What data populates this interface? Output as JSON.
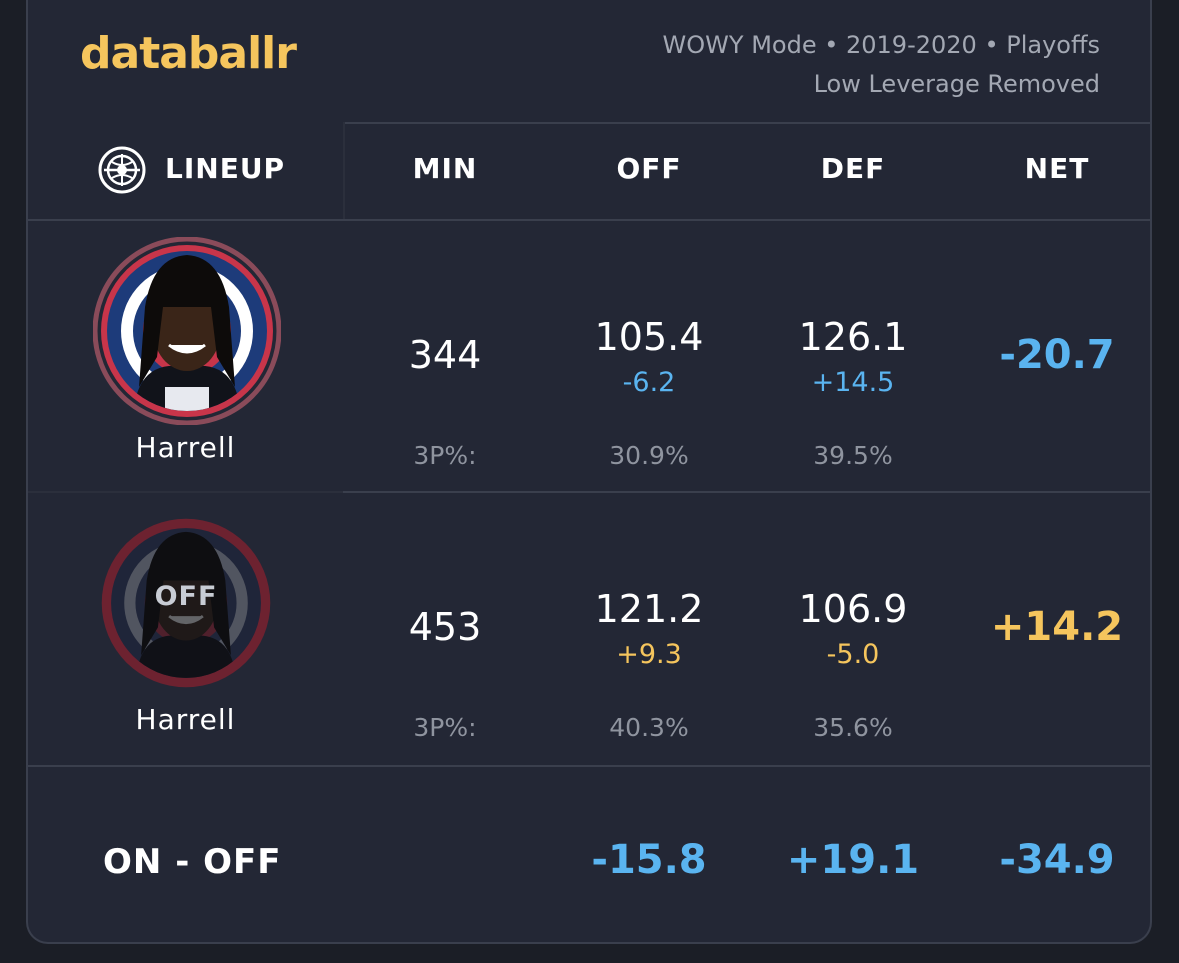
{
  "header": {
    "logo": "databallr",
    "meta_line1": "WOWY Mode • 2019-2020 • Playoffs",
    "meta_line2": "Low Leverage Removed"
  },
  "columns": {
    "lineup": "LINEUP",
    "min": "MIN",
    "off": "OFF",
    "def": "DEF",
    "net": "NET"
  },
  "rows": [
    {
      "player": "Harrell",
      "state": "on",
      "min": "344",
      "off": "105.4",
      "off_delta": "-6.2",
      "def": "126.1",
      "def_delta": "+14.5",
      "net": "-20.7",
      "tp_label": "3P%:",
      "off_3p": "30.9%",
      "def_3p": "39.5%"
    },
    {
      "player": "Harrell",
      "state": "off",
      "off_badge": "OFF",
      "min": "453",
      "off": "121.2",
      "off_delta": "+9.3",
      "def": "106.9",
      "def_delta": "-5.0",
      "net": "+14.2",
      "tp_label": "3P%:",
      "off_3p": "40.3%",
      "def_3p": "35.6%"
    }
  ],
  "summary": {
    "label": "ON - OFF",
    "off": "-15.8",
    "def": "+19.1",
    "net": "-34.9"
  },
  "colors": {
    "accent_gold": "#f5c55d",
    "accent_blue": "#5ab4f0",
    "background": "#232735"
  }
}
